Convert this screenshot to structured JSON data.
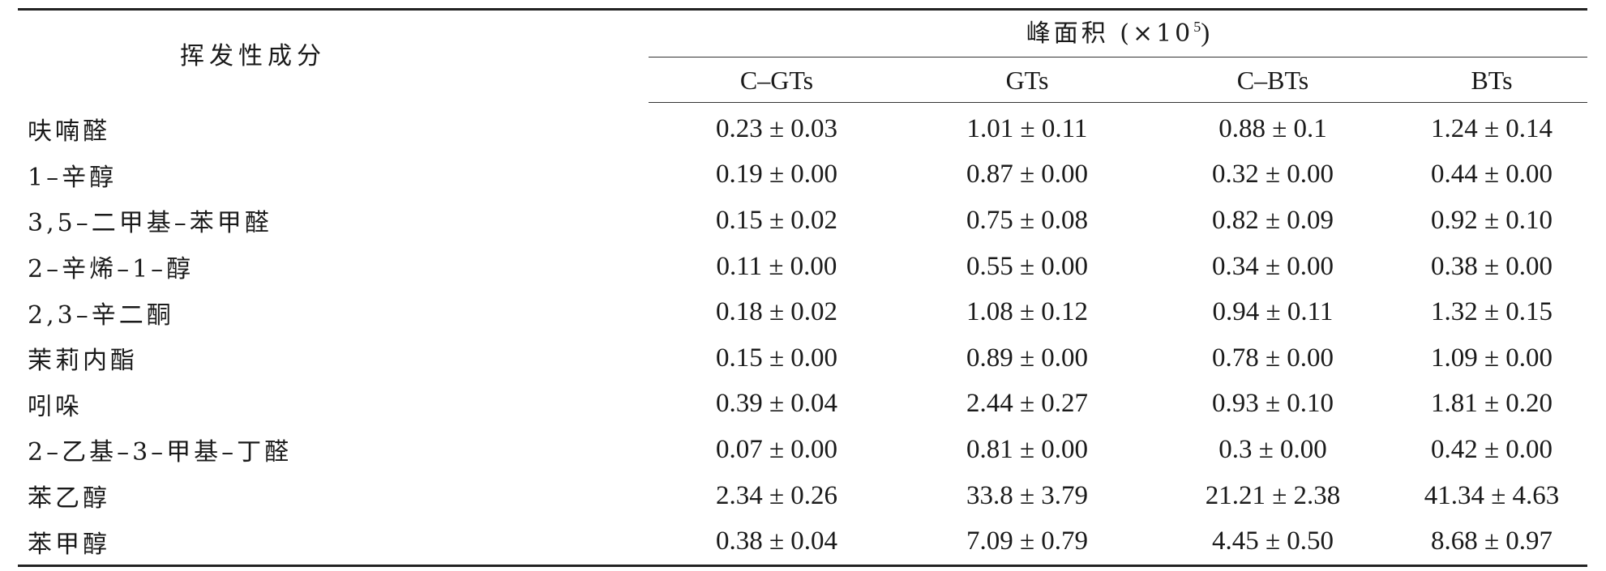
{
  "table": {
    "row_header": "挥发性成分",
    "group_header_prefix": "峰面积 (×10",
    "group_header_exp": "5",
    "group_header_suffix": ")",
    "columns": [
      "C–GTs",
      "GTs",
      "C–BTs",
      "BTs"
    ],
    "rows": [
      {
        "name": "呋喃醛",
        "values": [
          "0.23 ± 0.03",
          "1.01 ± 0.11",
          "0.88 ± 0.1",
          "1.24 ± 0.14"
        ]
      },
      {
        "name": "1–辛醇",
        "values": [
          "0.19 ± 0.00",
          "0.87 ± 0.00",
          "0.32 ± 0.00",
          "0.44 ± 0.00"
        ]
      },
      {
        "name": "3,5–二甲基–苯甲醛",
        "values": [
          "0.15 ± 0.02",
          "0.75 ± 0.08",
          "0.82 ± 0.09",
          "0.92 ± 0.10"
        ]
      },
      {
        "name": "2–辛烯–1–醇",
        "values": [
          "0.11 ± 0.00",
          "0.55 ± 0.00",
          "0.34 ± 0.00",
          "0.38 ± 0.00"
        ]
      },
      {
        "name": "2,3–辛二酮",
        "values": [
          "0.18 ± 0.02",
          "1.08 ± 0.12",
          "0.94 ± 0.11",
          "1.32 ± 0.15"
        ]
      },
      {
        "name": "茉莉内酯",
        "values": [
          "0.15 ± 0.00",
          "0.89 ± 0.00",
          "0.78 ± 0.00",
          "1.09 ± 0.00"
        ]
      },
      {
        "name": "吲哚",
        "values": [
          "0.39 ± 0.04",
          "2.44 ± 0.27",
          "0.93 ± 0.10",
          "1.81 ± 0.20"
        ]
      },
      {
        "name": "2–乙基–3–甲基–丁醛",
        "values": [
          "0.07 ± 0.00",
          "0.81 ± 0.00",
          "0.3 ± 0.00",
          "0.42 ± 0.00"
        ]
      },
      {
        "name": "苯乙醇",
        "values": [
          "2.34 ± 0.26",
          "33.8 ± 3.79",
          "21.21 ± 2.38",
          "41.34 ± 4.63"
        ]
      },
      {
        "name": "苯甲醇",
        "values": [
          "0.38 ± 0.04",
          "7.09 ± 0.79",
          "4.45 ± 0.50",
          "8.68 ± 0.97"
        ]
      }
    ]
  }
}
